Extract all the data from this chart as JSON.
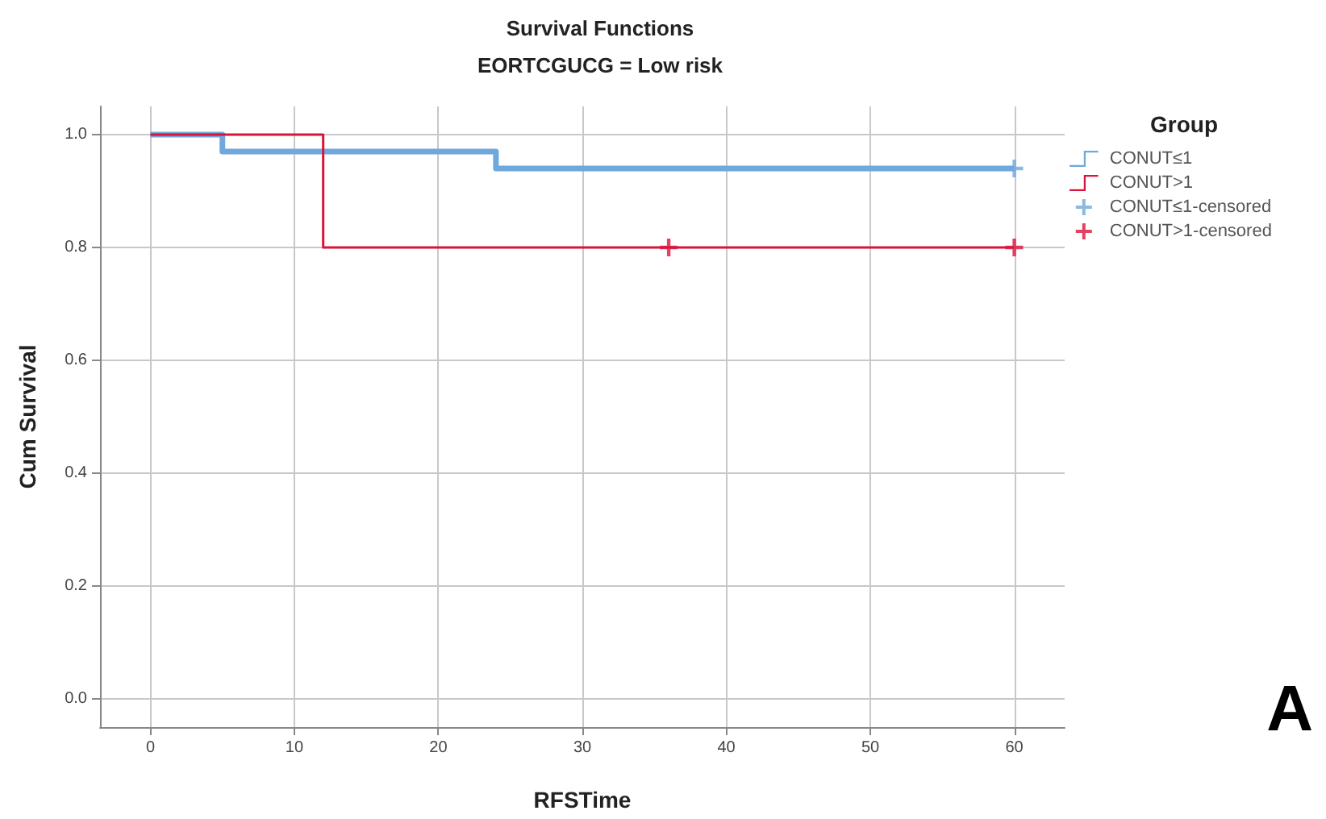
{
  "chart_data": {
    "type": "step",
    "title": "Survival Functions",
    "subtitle": "EORTCGUCG = Low risk",
    "xlabel": "RFSTime",
    "ylabel": "Cum Survival",
    "legend_title": "Group",
    "annotations": [
      "A"
    ],
    "series": [
      {
        "name": "CONUT≤1",
        "color": "#6fa8dc",
        "x": [
          0,
          5,
          24,
          60
        ],
        "values": [
          1,
          0.97,
          0.94,
          0.94
        ],
        "marker": "none"
      },
      {
        "name": "CONUT>1",
        "color": "#d9143a",
        "x": [
          0,
          12,
          60
        ],
        "values": [
          1,
          0.8,
          0.8
        ],
        "marker": "none"
      },
      {
        "name": "CONUT≤1-censored",
        "type": "scatter",
        "color": "#6fa8dc",
        "x": [
          60
        ],
        "values": [
          0.94
        ],
        "marker": "cross"
      },
      {
        "name": "CONUT>1-censored",
        "type": "scatter",
        "color": "#d9143a",
        "x": [
          36,
          60
        ],
        "values": [
          0.8,
          0.8
        ],
        "marker": "cross"
      }
    ],
    "xlim": [
      -3.5,
      63.5
    ],
    "xticks": [
      0,
      10,
      20,
      30,
      40,
      50,
      60
    ],
    "ylim": [
      -0.05,
      1.05
    ],
    "yticks": [
      {
        "value": 0,
        "label": "0.0"
      },
      {
        "value": 0.2,
        "label": "0.2"
      },
      {
        "value": 0.4,
        "label": "0.4"
      },
      {
        "value": 0.6,
        "label": "0.6"
      },
      {
        "value": 0.8,
        "label": "0.8"
      },
      {
        "value": 1,
        "label": "1.0"
      }
    ],
    "grid": true,
    "legend": "right"
  }
}
